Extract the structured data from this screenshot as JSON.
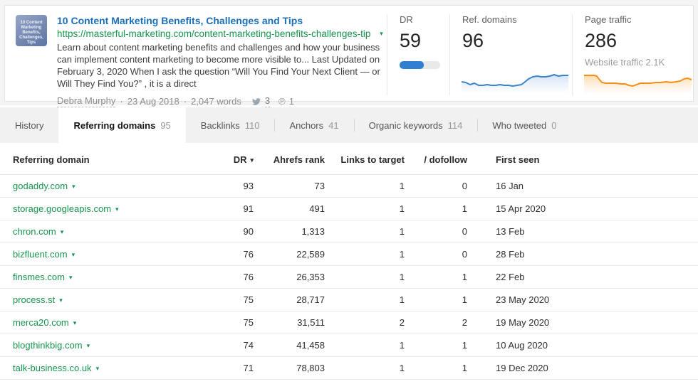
{
  "icons": {
    "caret": "▾",
    "sort": "▾",
    "pinterest": "℗",
    "twitter": "twitter-bird"
  },
  "header": {
    "title": "10 Content Marketing Benefits, Challenges and Tips",
    "url": "https://masterful-marketing.com/content-marketing-benefits-challenges-tip",
    "thumbnail_text": "10 Content Marketing Benefits, Challenges, Tips",
    "description": "Learn about content marketing benefits and challenges and how your business can implement content marketing to become more visible to... Last Updated on February 3, 2020 When I ask the question  “Will You Find Your Next Client — or Will They Find You?” , it is a direct",
    "author": "Debra Murphy",
    "separator": "·",
    "date": "23 Aug 2018",
    "word_count": "2,047 words",
    "tweets": "3",
    "pins": "1"
  },
  "metrics": {
    "dr": {
      "label": "DR",
      "value": "59",
      "percent": 59
    },
    "ref_domains": {
      "label": "Ref. domains",
      "value": "96",
      "spark_color": "#3b82ca",
      "spark": [
        [
          0,
          16
        ],
        [
          6,
          17
        ],
        [
          12,
          20
        ],
        [
          18,
          18
        ],
        [
          24,
          21
        ],
        [
          30,
          21
        ],
        [
          36,
          20
        ],
        [
          42,
          21
        ],
        [
          48,
          21
        ],
        [
          54,
          20
        ],
        [
          60,
          21
        ],
        [
          66,
          21
        ],
        [
          72,
          22
        ],
        [
          78,
          21
        ],
        [
          84,
          20
        ],
        [
          88,
          17
        ],
        [
          94,
          12
        ],
        [
          100,
          9
        ],
        [
          106,
          8
        ],
        [
          112,
          9
        ],
        [
          118,
          9
        ],
        [
          124,
          8
        ],
        [
          130,
          6
        ],
        [
          136,
          8
        ],
        [
          142,
          7
        ],
        [
          150,
          7
        ]
      ]
    },
    "page_traffic": {
      "label": "Page traffic",
      "value": "286",
      "subtitle": "Website traffic 2.1K",
      "spark_color": "#f98d13",
      "spark": [
        [
          0,
          7
        ],
        [
          8,
          7
        ],
        [
          16,
          7
        ],
        [
          20,
          8
        ],
        [
          24,
          13
        ],
        [
          28,
          17
        ],
        [
          34,
          18
        ],
        [
          42,
          18
        ],
        [
          50,
          18
        ],
        [
          58,
          19
        ],
        [
          64,
          19
        ],
        [
          70,
          21
        ],
        [
          76,
          22
        ],
        [
          82,
          20
        ],
        [
          88,
          18
        ],
        [
          96,
          18
        ],
        [
          104,
          18
        ],
        [
          112,
          17
        ],
        [
          120,
          17
        ],
        [
          128,
          16
        ],
        [
          136,
          17
        ],
        [
          144,
          16
        ],
        [
          150,
          15
        ],
        [
          156,
          12
        ],
        [
          162,
          11
        ],
        [
          168,
          13
        ]
      ]
    }
  },
  "tabs": [
    {
      "label": "History",
      "count": "",
      "active": false
    },
    {
      "label": "Referring domains",
      "count": "95",
      "active": true
    },
    {
      "label": "Backlinks",
      "count": "110",
      "active": false
    },
    {
      "label": "Anchors",
      "count": "41",
      "active": false
    },
    {
      "label": "Organic keywords",
      "count": "114",
      "active": false
    },
    {
      "label": "Who tweeted",
      "count": "0",
      "active": false
    }
  ],
  "table": {
    "columns": [
      {
        "label": "Referring domain",
        "sort": false
      },
      {
        "label": "DR",
        "sort": true
      },
      {
        "label": "Ahrefs rank",
        "sort": false
      },
      {
        "label": "Links to target",
        "sort": false
      },
      {
        "label": "/ dofollow",
        "sort": false
      },
      {
        "label": "First seen",
        "sort": false
      }
    ],
    "rows": [
      {
        "domain": "godaddy.com",
        "dr": "93",
        "rank": "73",
        "links": "1",
        "dofollow": "0",
        "first_seen": "16 Jan"
      },
      {
        "domain": "storage.googleapis.com",
        "dr": "91",
        "rank": "491",
        "links": "1",
        "dofollow": "1",
        "first_seen": "15 Apr 2020"
      },
      {
        "domain": "chron.com",
        "dr": "90",
        "rank": "1,313",
        "links": "1",
        "dofollow": "0",
        "first_seen": "13 Feb"
      },
      {
        "domain": "bizfluent.com",
        "dr": "76",
        "rank": "22,589",
        "links": "1",
        "dofollow": "0",
        "first_seen": "28 Feb"
      },
      {
        "domain": "finsmes.com",
        "dr": "76",
        "rank": "26,353",
        "links": "1",
        "dofollow": "1",
        "first_seen": "22 Feb"
      },
      {
        "domain": "process.st",
        "dr": "75",
        "rank": "28,717",
        "links": "1",
        "dofollow": "1",
        "first_seen": "23 May 2020"
      },
      {
        "domain": "merca20.com",
        "dr": "75",
        "rank": "31,511",
        "links": "2",
        "dofollow": "2",
        "first_seen": "19 May 2020"
      },
      {
        "domain": "blogthinkbig.com",
        "dr": "74",
        "rank": "41,458",
        "links": "1",
        "dofollow": "1",
        "first_seen": "10 Aug 2020"
      },
      {
        "domain": "talk-business.co.uk",
        "dr": "71",
        "rank": "78,803",
        "links": "1",
        "dofollow": "1",
        "first_seen": "19 Dec 2020"
      }
    ]
  }
}
